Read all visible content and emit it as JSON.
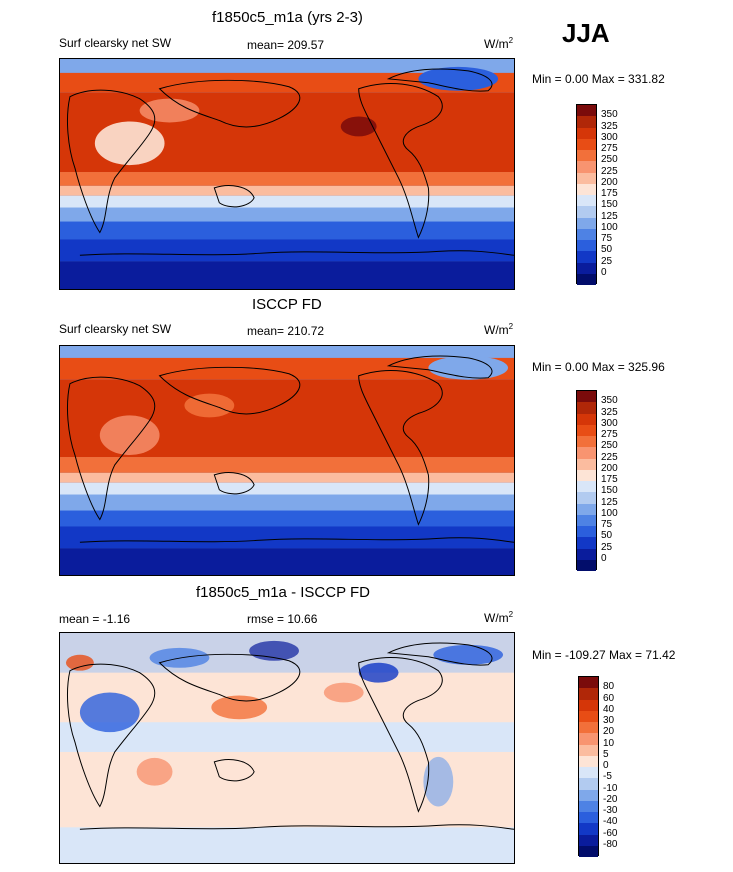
{
  "season": "JJA",
  "panels": [
    {
      "title": "f1850c5_m1a (yrs 2-3)",
      "left_label": "Surf clearsky net SW",
      "center_label": "mean= 209.57",
      "units": "W/m",
      "units_sup": "2",
      "minmax": "Min =   0.00 Max = 331.82",
      "levels": [
        "350",
        "325",
        "300",
        "275",
        "250",
        "225",
        "200",
        "175",
        "150",
        "125",
        "100",
        "75",
        "50",
        "25",
        "0"
      ]
    },
    {
      "title": "ISCCP FD",
      "left_label": "Surf clearsky net SW",
      "center_label": "mean= 210.72",
      "units": "W/m",
      "units_sup": "2",
      "minmax": "Min =   0.00 Max = 325.96",
      "levels": [
        "350",
        "325",
        "300",
        "275",
        "250",
        "225",
        "200",
        "175",
        "150",
        "125",
        "100",
        "75",
        "50",
        "25",
        "0"
      ]
    },
    {
      "title": "f1850c5_m1a - ISCCP FD",
      "left_label": "mean =  -1.16",
      "center_label": "rmse =  10.66",
      "units": "W/m",
      "units_sup": "2",
      "minmax": "Min = -109.27 Max =  71.42",
      "levels": [
        "80",
        "60",
        "40",
        "30",
        "20",
        "10",
        "5",
        "0",
        "-5",
        "-10",
        "-20",
        "-30",
        "-40",
        "-60",
        "-80"
      ]
    }
  ],
  "colors": {
    "field_scale": [
      "#7a0b0b",
      "#b02708",
      "#d53608",
      "#e84d15",
      "#f2703a",
      "#f89470",
      "#fbbc9f",
      "#fde4d6",
      "#d9e6f8",
      "#b2cbf0",
      "#7fa8ea",
      "#4e82e4",
      "#2b5fdd",
      "#1238c6",
      "#0a1c9c",
      "#020d6b"
    ],
    "diff_scale": [
      "#7a0b0b",
      "#b02708",
      "#d53608",
      "#e84d15",
      "#f2703a",
      "#f89470",
      "#fbbc9f",
      "#fde4d6",
      "#d9e6f8",
      "#b2cbf0",
      "#7fa8ea",
      "#4e82e4",
      "#2b5fdd",
      "#1238c6",
      "#0a1c9c",
      "#020d6b"
    ]
  }
}
